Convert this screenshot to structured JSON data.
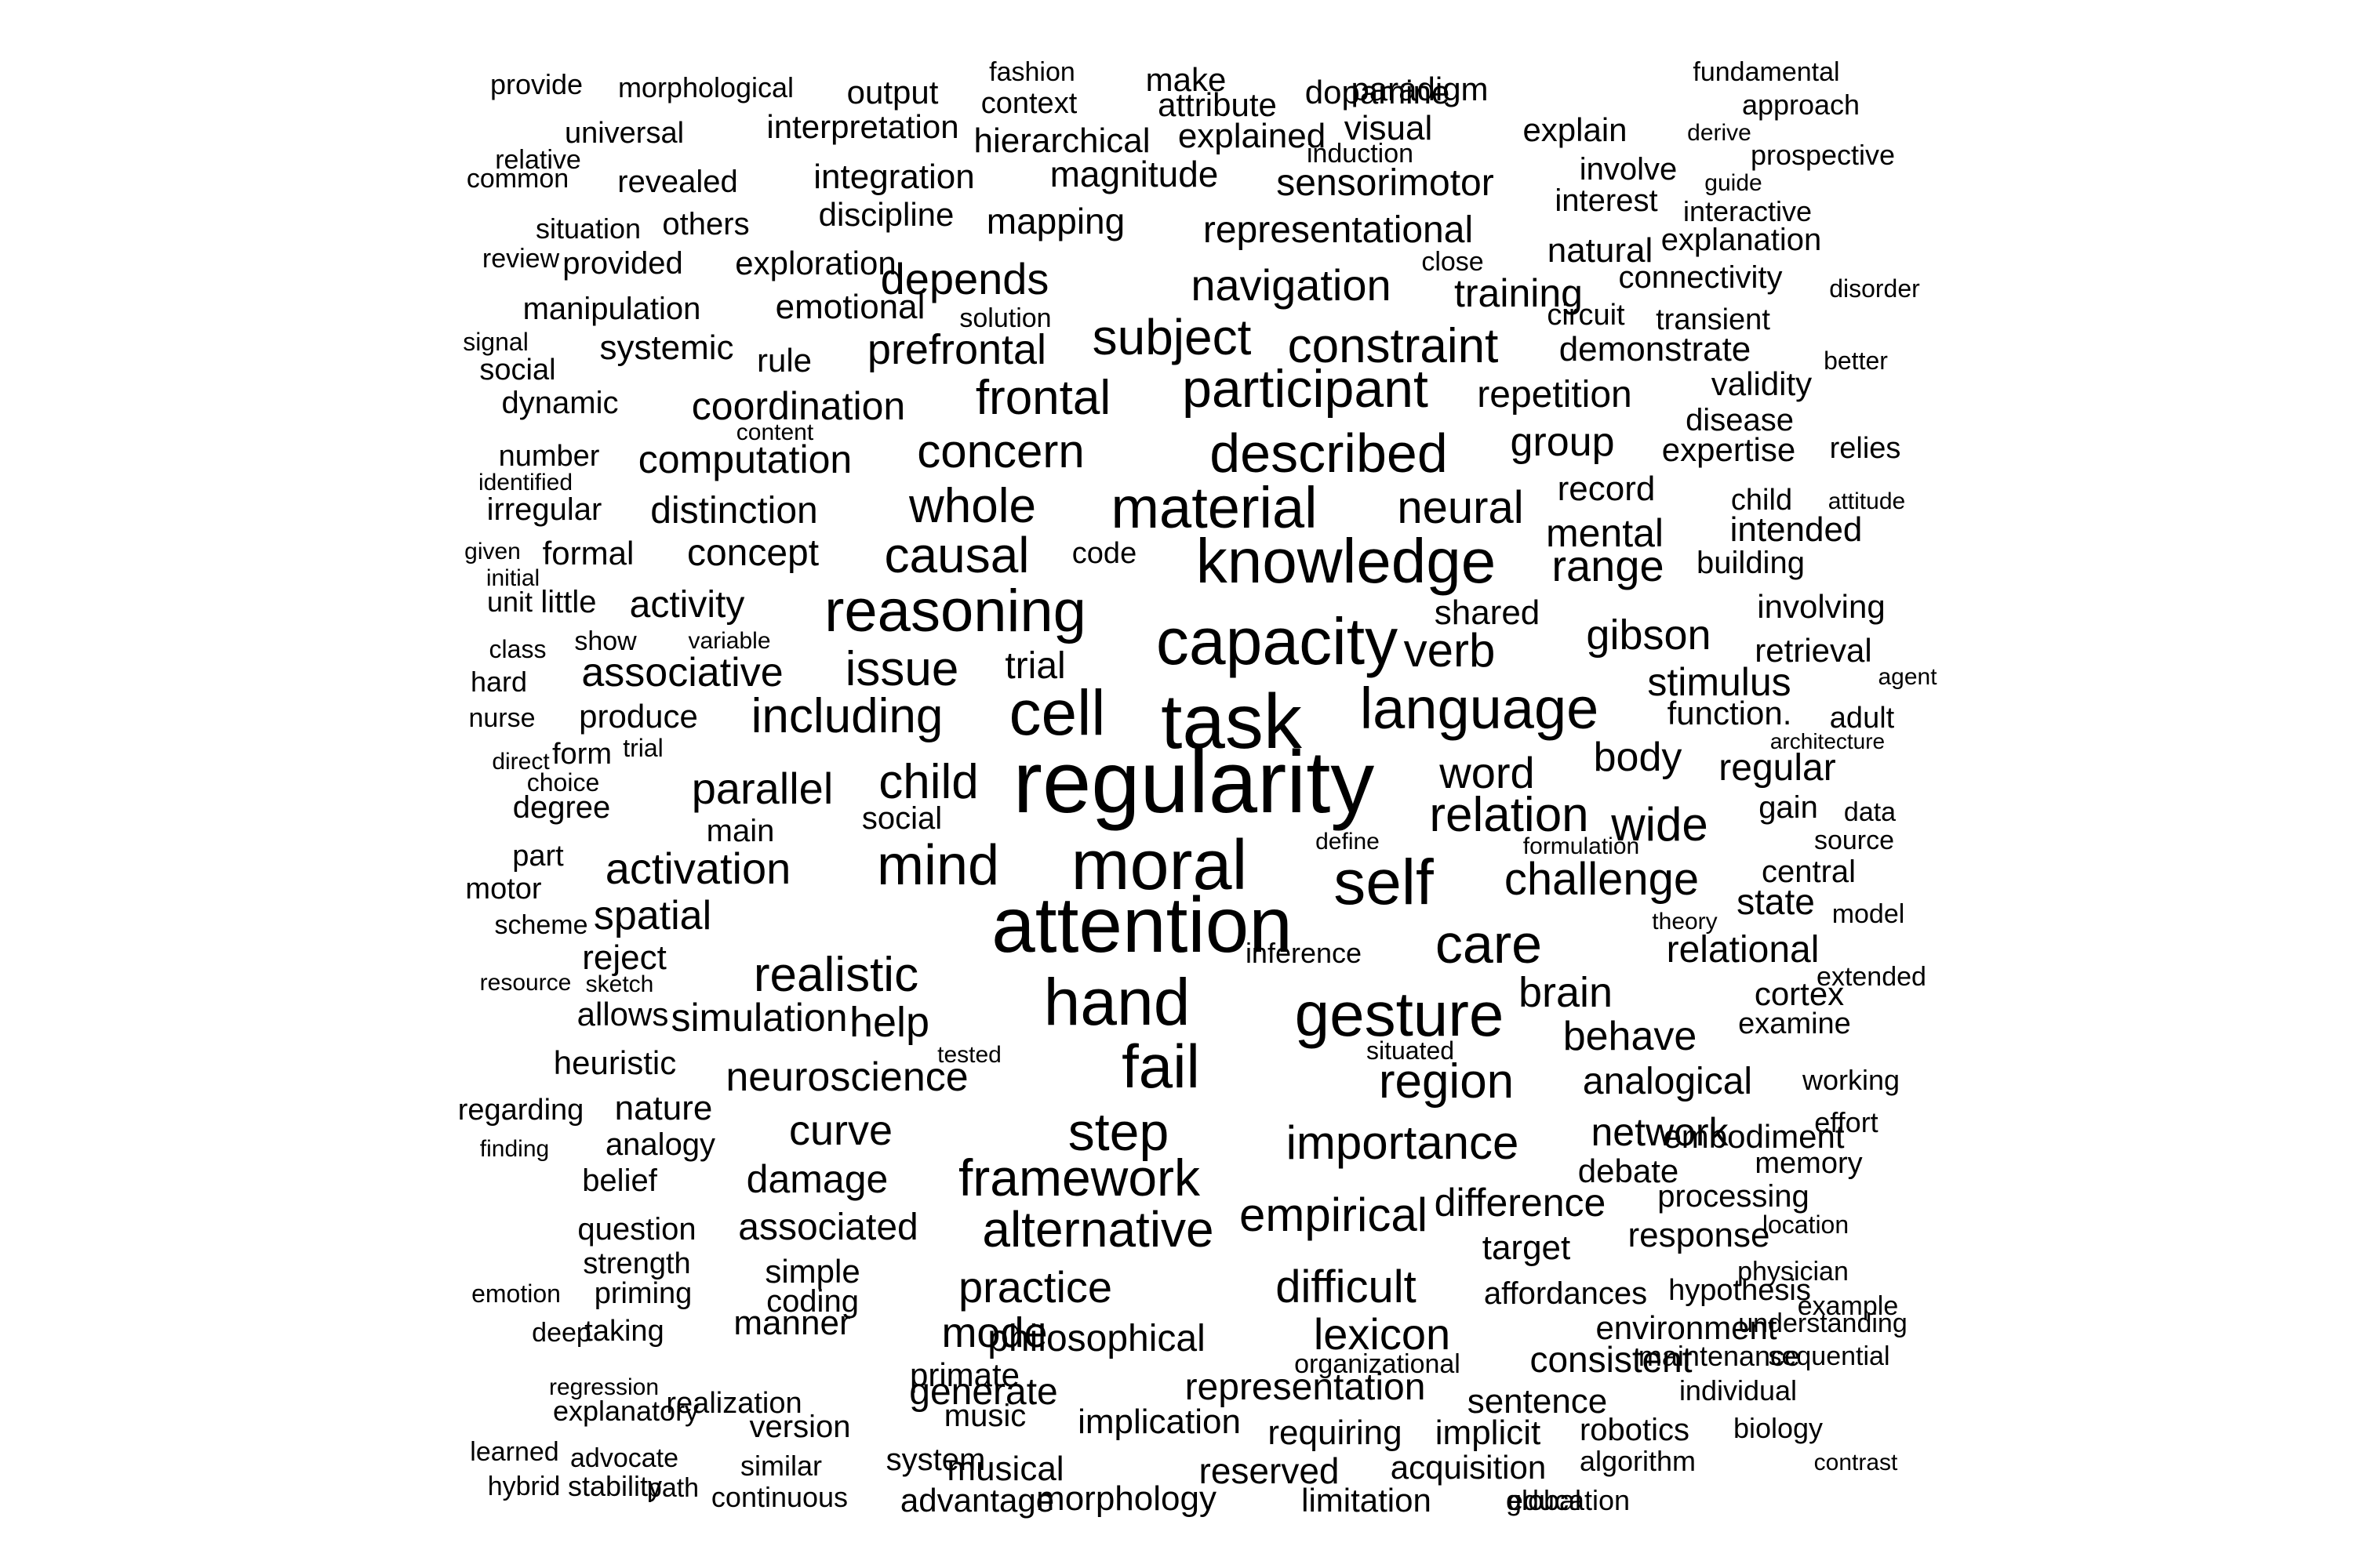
{
  "text_color": "#000000",
  "background_color": "#ffffff",
  "words": [
    "provide",
    "morphological",
    "output",
    "fashion",
    "context",
    "make",
    "attribute",
    "dopamine",
    "paradigm",
    "fundamental",
    "approach",
    "universal",
    "interpretation",
    "hierarchical",
    "explained",
    "visual",
    "induction",
    "explain",
    "derive",
    "relative",
    "common",
    "revealed",
    "integration",
    "magnitude",
    "sensorimotor",
    "involve",
    "interest",
    "prospective",
    "guide",
    "situation",
    "others",
    "discipline",
    "mapping",
    "representational",
    "interactive",
    "explanation",
    "review",
    "provided",
    "exploration",
    "close",
    "natural",
    "manipulation",
    "emotional",
    "depends",
    "navigation",
    "training",
    "connectivity",
    "disorder",
    "solution",
    "circuit",
    "transient",
    "signal",
    "social",
    "systemic",
    "rule",
    "prefrontal",
    "subject",
    "constraint",
    "demonstrate",
    "better",
    "dynamic",
    "coordination",
    "frontal",
    "participant",
    "repetition",
    "validity",
    "content",
    "disease",
    "number",
    "computation",
    "concern",
    "described",
    "group",
    "expertise",
    "relies",
    "identified",
    "distinction",
    "whole",
    "material",
    "neural",
    "record",
    "child",
    "attitude",
    "irregular",
    "concept",
    "causal",
    "knowledge",
    "mental",
    "intended",
    "given",
    "formal",
    "code",
    "range",
    "building",
    "initial",
    "unit",
    "little",
    "activity",
    "reasoning",
    "shared",
    "involving",
    "class",
    "show",
    "variable",
    "associative",
    "issue",
    "capacity",
    "verb",
    "gibson",
    "retrieval",
    "hard",
    "trial",
    "stimulus",
    "agent",
    "nurse",
    "produce",
    "including",
    "cell",
    "task",
    "language",
    "function.",
    "adult",
    "direct",
    "form",
    "trial",
    "architecture",
    "body",
    "choice",
    "parallel",
    "child",
    "regularity",
    "word",
    "regular",
    "degree",
    "relation",
    "gain",
    "data",
    "main",
    "social",
    "define",
    "wide",
    "formulation",
    "source",
    "part",
    "moral",
    "self",
    "central",
    "motor",
    "activation",
    "mind",
    "challenge",
    "state",
    "scheme",
    "spatial",
    "attention",
    "theory",
    "model",
    "reject",
    "inference",
    "care",
    "relational",
    "resource",
    "sketch",
    "realistic",
    "extended",
    "help",
    "brain",
    "cortex",
    "allows",
    "simulation",
    "hand",
    "gesture",
    "situated",
    "behave",
    "examine",
    "heuristic",
    "tested",
    "neuroscience",
    "fail",
    "region",
    "analogical",
    "working",
    "regarding",
    "nature",
    "effort",
    "analogy",
    "curve",
    "step",
    "network",
    "embodiment",
    "finding",
    "belief",
    "damage",
    "importance",
    "debate",
    "memory",
    "framework",
    "difference",
    "processing",
    "question",
    "associated",
    "empirical",
    "alternative",
    "target",
    "response",
    "location",
    "strength",
    "simple",
    "physician",
    "emotion",
    "priming",
    "coding",
    "practice",
    "difficult",
    "affordances",
    "hypothesis",
    "example",
    "deep",
    "taking",
    "manner",
    "mode",
    "lexicon",
    "understanding",
    "environment",
    "maintenance",
    "philosophical",
    "primate",
    "organizational",
    "consistent",
    "sequential",
    "regression",
    "realization",
    "generate",
    "representation",
    "individual",
    "explanatory",
    "music",
    "sentence",
    "version",
    "implication",
    "requiring",
    "implicit",
    "robotics",
    "biology",
    "learned",
    "advocate",
    "system",
    "musical",
    "reserved",
    "acquisition",
    "algorithm",
    "contrast",
    "similar",
    "stability",
    "advantage",
    "hybrid",
    "path",
    "morphology",
    "limitation",
    "continuous",
    "education",
    "global"
  ]
}
